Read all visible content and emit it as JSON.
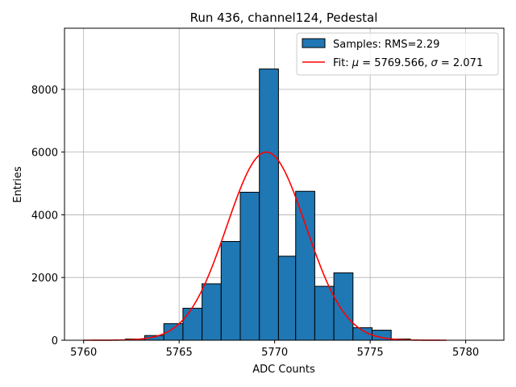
{
  "chart_data": {
    "type": "bar",
    "title": "Run 436, channel124, Pedestal",
    "xlabel": "ADC Counts",
    "ylabel": "Entries",
    "xlim": [
      5759,
      5782
    ],
    "ylim": [
      0,
      9950
    ],
    "xticks": [
      5760,
      5765,
      5770,
      5775,
      5780
    ],
    "yticks": [
      0,
      2000,
      4000,
      6000,
      8000
    ],
    "grid": true,
    "legend_position": "top-right",
    "bar_color": "#1f77b4",
    "fit_color": "#ff0000",
    "histogram": {
      "name": "Samples: RMS=2.29",
      "bins": [
        {
          "x0": 5762.2,
          "x1": 5763.2,
          "value": 40
        },
        {
          "x0": 5763.2,
          "x1": 5764.2,
          "value": 150
        },
        {
          "x0": 5764.2,
          "x1": 5765.2,
          "value": 530
        },
        {
          "x0": 5765.2,
          "x1": 5766.2,
          "value": 1020
        },
        {
          "x0": 5766.2,
          "x1": 5767.2,
          "value": 1800
        },
        {
          "x0": 5767.2,
          "x1": 5768.2,
          "value": 3150
        },
        {
          "x0": 5768.2,
          "x1": 5769.2,
          "value": 4720
        },
        {
          "x0": 5769.2,
          "x1": 5770.2,
          "value": 8650
        },
        {
          "x0": 5770.2,
          "x1": 5771.1,
          "value": 2680
        },
        {
          "x0": 5771.1,
          "x1": 5772.1,
          "value": 4750
        },
        {
          "x0": 5772.1,
          "x1": 5773.1,
          "value": 1720
        },
        {
          "x0": 5773.1,
          "x1": 5774.1,
          "value": 2150
        },
        {
          "x0": 5774.1,
          "x1": 5775.1,
          "value": 400
        },
        {
          "x0": 5775.1,
          "x1": 5776.1,
          "value": 320
        },
        {
          "x0": 5776.1,
          "x1": 5777.1,
          "value": 40
        }
      ]
    },
    "fit": {
      "name_prefix": "Fit: ",
      "mu_symbol": "μ",
      "mu_text": " = 5769.566, ",
      "sigma_symbol": "σ",
      "sigma_text": " = 2.071",
      "mu": 5769.566,
      "sigma": 2.071,
      "amplitude": 6000,
      "x_range": [
        5760,
        5779
      ]
    }
  }
}
